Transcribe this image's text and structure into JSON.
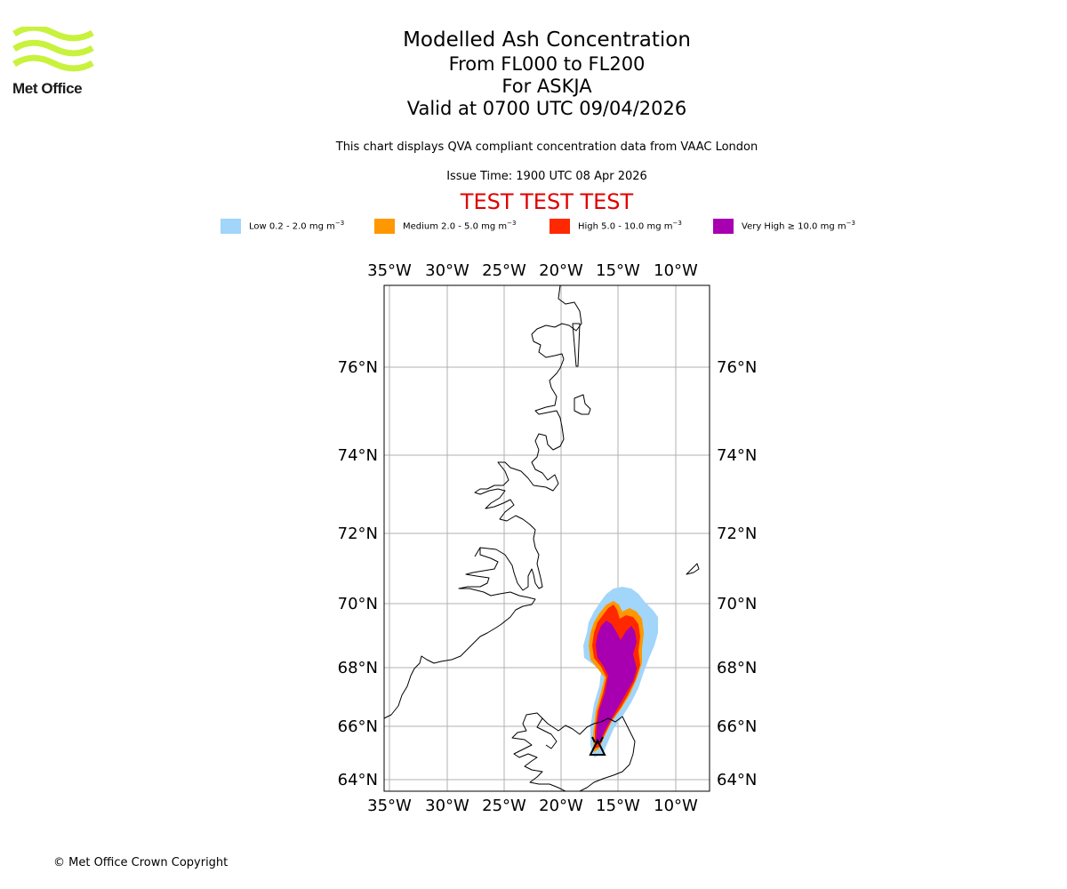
{
  "logo": {
    "text": "Met Office",
    "color": "#c8f23c"
  },
  "header": {
    "title": "Modelled Ash Concentration",
    "levels": "From FL000 to FL200",
    "volcano": "For ASKJA",
    "valid": "Valid at 0700 UTC 09/04/2026"
  },
  "notes": {
    "description": "This chart displays QVA compliant concentration data from VAAC London",
    "issue_time": "Issue Time: 1900 UTC 08 Apr 2026",
    "test_banner": "TEST TEST TEST"
  },
  "legend": [
    {
      "label": "Low 0.2 - 2.0 mg m",
      "color": "#a1d5fa"
    },
    {
      "label": "Medium 2.0 - 5.0 mg m",
      "color": "#ff9800"
    },
    {
      "label": "High 5.0 - 10.0 mg m",
      "color": "#ff2800"
    },
    {
      "label": "Very High ≥ 10.0 mg m",
      "color": "#a800b0"
    }
  ],
  "legend_unit_exponent": "−3",
  "map": {
    "lon_ticks": [
      "35°W",
      "30°W",
      "25°W",
      "20°W",
      "15°W",
      "10°W"
    ],
    "lat_ticks": [
      "76°N",
      "74°N",
      "72°N",
      "70°N",
      "68°N",
      "66°N",
      "64°N"
    ],
    "volcano_marker": "volcano-icon"
  },
  "footer": {
    "copyright": "© Met Office Crown Copyright"
  }
}
